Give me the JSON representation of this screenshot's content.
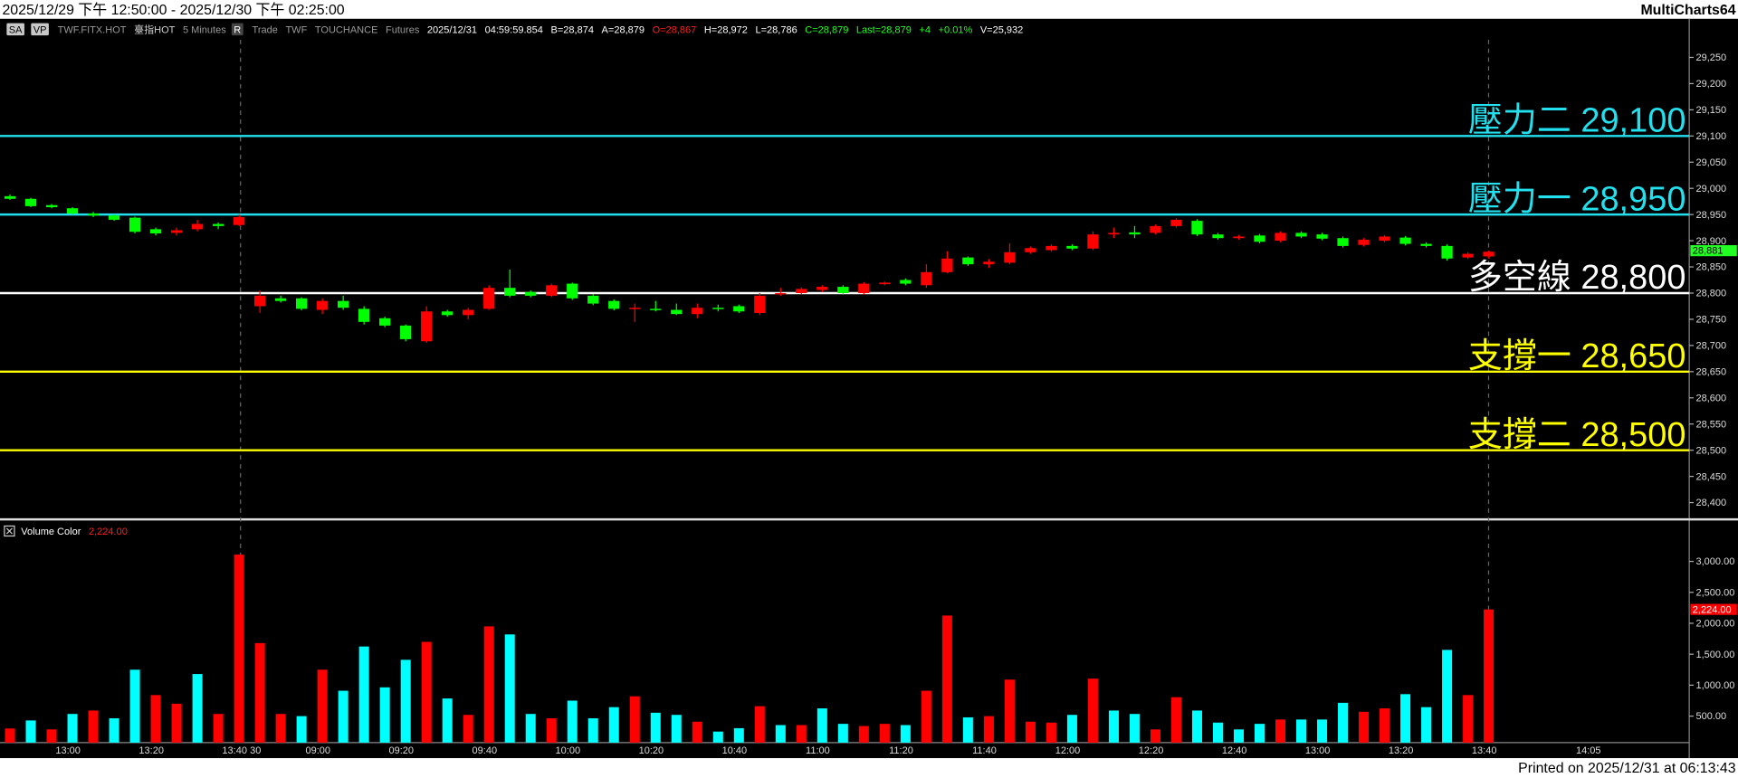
{
  "title_bar": {
    "range": "2025/12/29 下午 12:50:00 - 2025/12/30 下午 02:25:00",
    "app": "MultiCharts64"
  },
  "toolbar": [
    {
      "text": "SA",
      "color": "#000000",
      "box": "#c8c8c8"
    },
    {
      "text": "VP",
      "color": "#000000",
      "box": "#c8c8c8"
    },
    {
      "text": "TWF.FITX.HOT",
      "color": "#9a9a9a"
    },
    {
      "text": "臺指HOT",
      "color": "#cfcfcf"
    },
    {
      "text": "5 Minutes",
      "color": "#9a9a9a"
    },
    {
      "text": "R",
      "color": "#ffffff",
      "box": "#444444"
    },
    {
      "text": "Trade",
      "color": "#9a9a9a"
    },
    {
      "text": "TWF",
      "color": "#9a9a9a"
    },
    {
      "text": "TOUCHANCE",
      "color": "#9a9a9a"
    },
    {
      "text": "Futures",
      "color": "#9a9a9a"
    },
    {
      "text": "2025/12/31",
      "color": "#ffffff"
    },
    {
      "text": "04:59:59.854",
      "color": "#ffffff"
    },
    {
      "text": "B=28,874",
      "color": "#ffffff"
    },
    {
      "text": "A=28,879",
      "color": "#ffffff"
    },
    {
      "text": "O=28,867",
      "color": "#ff2020"
    },
    {
      "text": "H=28,972",
      "color": "#ffffff"
    },
    {
      "text": "L=28,786",
      "color": "#ffffff"
    },
    {
      "text": "C=28,879",
      "color": "#22ff22"
    },
    {
      "text": "Last=28,879",
      "color": "#22ff22"
    },
    {
      "text": "+4",
      "color": "#22ff22"
    },
    {
      "text": "+0.01%",
      "color": "#22ff22"
    },
    {
      "text": "V=25,932",
      "color": "#ffffff"
    }
  ],
  "chart_data": [
    {
      "type": "candlestick",
      "categories": [
        null,
        null,
        null,
        "13:00",
        null,
        null,
        null,
        "13:20",
        null,
        null,
        null,
        "13:40",
        "30",
        null,
        null,
        "09:00",
        null,
        null,
        null,
        "09:20",
        null,
        null,
        null,
        "09:40",
        null,
        null,
        null,
        "10:00",
        null,
        null,
        null,
        "10:20",
        null,
        null,
        null,
        "10:40",
        null,
        null,
        null,
        "11:00",
        null,
        null,
        null,
        "11:20",
        null,
        null,
        null,
        "11:40",
        null,
        null,
        null,
        "12:00",
        null,
        null,
        null,
        "12:20",
        null,
        null,
        null,
        "12:40",
        null,
        null,
        null,
        "13:00",
        null,
        null,
        null,
        "13:20",
        null,
        null,
        null,
        "13:40",
        null,
        null,
        null,
        null,
        "14:05"
      ],
      "open": [
        28985,
        28980,
        28968,
        28962,
        28952,
        28948,
        28944,
        28922,
        28915,
        28922,
        28932,
        28930,
        28775,
        28790,
        28790,
        28768,
        28785,
        28770,
        28752,
        28738,
        28708,
        28765,
        28758,
        28770,
        28810,
        28802,
        28795,
        28818,
        28795,
        28785,
        28770,
        28770,
        28768,
        28760,
        28772,
        28775,
        28762,
        28798,
        28800,
        28806,
        28812,
        28800,
        28817,
        28825,
        28815,
        28840,
        28868,
        28855,
        28858,
        28878,
        28882,
        28890,
        28885,
        28912,
        28916,
        28915,
        28928,
        28938,
        28912,
        28905,
        28910,
        28900,
        28915,
        28912,
        28905,
        28892,
        28900,
        28906,
        28894,
        28890,
        28868,
        28870,
        null,
        null,
        null,
        null,
        null
      ],
      "high": [
        28988,
        28982,
        28970,
        28964,
        28955,
        28950,
        28946,
        28925,
        28925,
        28940,
        28935,
        28950,
        28805,
        28795,
        28792,
        28790,
        28795,
        28775,
        28755,
        28740,
        28775,
        28768,
        28772,
        28815,
        28845,
        28805,
        28818,
        28820,
        28798,
        28788,
        28780,
        28785,
        28780,
        28780,
        28778,
        28778,
        28800,
        28810,
        28811,
        28815,
        28815,
        28821,
        28822,
        28828,
        28855,
        28880,
        28870,
        28865,
        28895,
        28889,
        28893,
        28893,
        28918,
        28925,
        28928,
        28931,
        28943,
        28941,
        28915,
        28911,
        28913,
        28918,
        28918,
        28915,
        28908,
        28905,
        28911,
        28909,
        28897,
        28893,
        28878,
        28881,
        null,
        null,
        null,
        null,
        null
      ],
      "low": [
        28978,
        28964,
        28962,
        28950,
        28945,
        28938,
        28914,
        28910,
        28910,
        28918,
        28922,
        28928,
        28762,
        28782,
        28767,
        28760,
        28768,
        28740,
        28735,
        28708,
        28705,
        28755,
        28750,
        28768,
        28792,
        28792,
        28792,
        28787,
        28777,
        28767,
        28745,
        28765,
        28758,
        28752,
        28765,
        28762,
        28758,
        28795,
        28797,
        28802,
        28797,
        28797,
        28815,
        28815,
        28810,
        28838,
        28852,
        28848,
        28855,
        28875,
        28879,
        28882,
        28882,
        28905,
        28905,
        28912,
        28925,
        28909,
        28902,
        28902,
        28895,
        28897,
        28905,
        28901,
        28887,
        28889,
        28897,
        28891,
        28887,
        28862,
        28865,
        28866,
        null,
        null,
        null,
        null,
        null
      ],
      "close": [
        28980,
        28966,
        28964,
        28952,
        28948,
        28940,
        28917,
        28914,
        28920,
        28932,
        28928,
        28945,
        28795,
        28785,
        28770,
        28785,
        28772,
        28745,
        28738,
        28712,
        28765,
        28758,
        28768,
        28810,
        28795,
        28795,
        28815,
        28790,
        28780,
        28770,
        28772,
        28768,
        28760,
        28772,
        28770,
        28765,
        28795,
        28800,
        28808,
        28812,
        28800,
        28818,
        28820,
        28818,
        28840,
        28866,
        28855,
        28860,
        28878,
        28886,
        28890,
        28885,
        28912,
        28915,
        28912,
        28928,
        28940,
        28912,
        28905,
        28908,
        28898,
        28915,
        28908,
        28904,
        28890,
        28902,
        28908,
        28894,
        28890,
        28866,
        28875,
        28879,
        null,
        null,
        null,
        null,
        null
      ],
      "up_color": "#ff0000",
      "down_color": "#00ff00",
      "ylim": [
        28370,
        29290
      ],
      "yticks": [
        {
          "value": 28400,
          "label": "28,400"
        },
        {
          "value": 28450,
          "label": "28,450"
        },
        {
          "value": 28500,
          "label": "28,500"
        },
        {
          "value": 28550,
          "label": "28,550"
        },
        {
          "value": 28600,
          "label": "28,600"
        },
        {
          "value": 28650,
          "label": "28,650"
        },
        {
          "value": 28700,
          "label": "28,700"
        },
        {
          "value": 28750,
          "label": "28,750"
        },
        {
          "value": 28800,
          "label": "28,800"
        },
        {
          "value": 28850,
          "label": "28,850"
        },
        {
          "value": 28900,
          "label": "28,900"
        },
        {
          "value": 28950,
          "label": "28,950"
        },
        {
          "value": 29000,
          "label": "29,000"
        },
        {
          "value": 29050,
          "label": "29,050"
        },
        {
          "value": 29100,
          "label": "29,100"
        },
        {
          "value": 29150,
          "label": "29,150"
        },
        {
          "value": 29200,
          "label": "29,200"
        },
        {
          "value": 29250,
          "label": "29,250"
        }
      ],
      "levels": [
        {
          "label": "壓力二",
          "value": 29100,
          "value_label": "29,100",
          "color": "#22e0ee"
        },
        {
          "label": "壓力一",
          "value": 28950,
          "value_label": "28,950",
          "color": "#22e0ee"
        },
        {
          "label": "多空線",
          "value": 28800,
          "value_label": "28,800",
          "color": "#ffffff"
        },
        {
          "label": "支撐一",
          "value": 28650,
          "value_label": "28,650",
          "color": "#ffff00"
        },
        {
          "label": "支撐二",
          "value": 28500,
          "value_label": "28,500",
          "color": "#ffff00"
        }
      ],
      "marker": {
        "value": 28881,
        "label": "28,881",
        "color": "#22ff22"
      }
    },
    {
      "type": "bar",
      "name": "Volume Color",
      "legend_value": "2,224.00",
      "values": [
        300,
        430,
        285,
        535,
        590,
        465,
        1250,
        840,
        700,
        1180,
        535,
        3110,
        1680,
        535,
        500,
        1250,
        910,
        1625,
        965,
        1410,
        1700,
        785,
        520,
        1950,
        1820,
        535,
        465,
        750,
        465,
        645,
        820,
        555,
        520,
        410,
        250,
        305,
        660,
        355,
        355,
        625,
        375,
        340,
        375,
        355,
        910,
        2125,
        480,
        500,
        1090,
        410,
        395,
        520,
        1105,
        590,
        535,
        285,
        805,
        590,
        395,
        285,
        375,
        445,
        445,
        445,
        715,
        570,
        625,
        855,
        645,
        1570,
        840,
        2224,
        null,
        null,
        null,
        null,
        null
      ],
      "colors": [
        "#ff0000",
        "#00ffff",
        "#ff0000",
        "#00ffff",
        "#ff0000",
        "#00ffff",
        "#00ffff",
        "#ff0000",
        "#ff0000",
        "#00ffff",
        "#ff0000",
        "#ff0000",
        "#ff0000",
        "#ff0000",
        "#00ffff",
        "#ff0000",
        "#00ffff",
        "#00ffff",
        "#00ffff",
        "#00ffff",
        "#ff0000",
        "#00ffff",
        "#ff0000",
        "#ff0000",
        "#00ffff",
        "#00ffff",
        "#ff0000",
        "#00ffff",
        "#00ffff",
        "#00ffff",
        "#ff0000",
        "#00ffff",
        "#00ffff",
        "#ff0000",
        "#00ffff",
        "#00ffff",
        "#ff0000",
        "#00ffff",
        "#ff0000",
        "#00ffff",
        "#00ffff",
        "#ff0000",
        "#ff0000",
        "#00ffff",
        "#ff0000",
        "#ff0000",
        "#00ffff",
        "#ff0000",
        "#ff0000",
        "#ff0000",
        "#ff0000",
        "#00ffff",
        "#ff0000",
        "#00ffff",
        "#00ffff",
        "#ff0000",
        "#ff0000",
        "#00ffff",
        "#00ffff",
        "#00ffff",
        "#00ffff",
        "#ff0000",
        "#00ffff",
        "#00ffff",
        "#00ffff",
        "#ff0000",
        "#ff0000",
        "#00ffff",
        "#00ffff",
        "#00ffff",
        "#ff0000",
        "#ff0000",
        null,
        null,
        null,
        null,
        null
      ],
      "ylim": [
        0,
        3500
      ],
      "yticks": [
        {
          "value": 500,
          "label": "500.00"
        },
        {
          "value": 1000,
          "label": "1,000.00"
        },
        {
          "value": 1500,
          "label": "1,500.00"
        },
        {
          "value": 2000,
          "label": "2,000.00"
        },
        {
          "value": 2500,
          "label": "2,500.00"
        },
        {
          "value": 3000,
          "label": "3,000.00"
        }
      ],
      "marker": {
        "value": 2224,
        "label": "2,224.00",
        "color": "#ff0000"
      }
    }
  ],
  "footer": "Printed on 2025/12/31 at 06:13:43"
}
